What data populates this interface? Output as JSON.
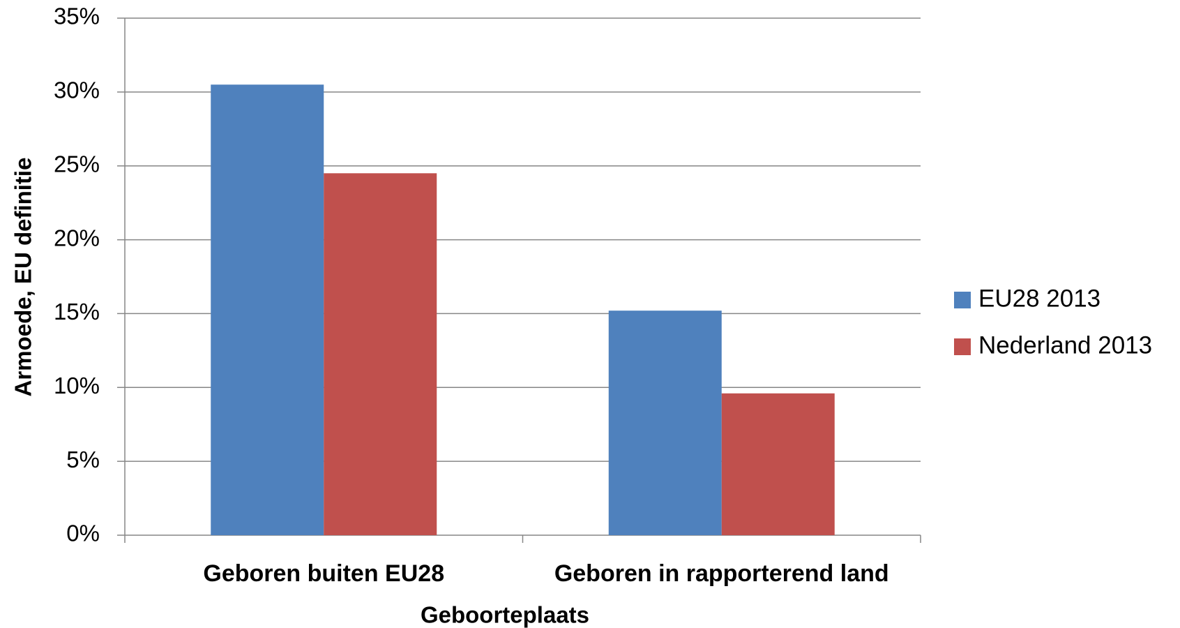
{
  "chart_data": {
    "type": "bar",
    "x_label": "Geboorteplaats",
    "y_label": "Armoede, EU definitie",
    "categories": [
      "Geboren buiten EU28",
      "Geboren in rapporterend land"
    ],
    "series": [
      {
        "name": "EU28 2013",
        "color": "#4f81bd",
        "values": [
          30.5,
          15.2
        ]
      },
      {
        "name": "Nederland 2013",
        "color": "#c0504d",
        "values": [
          24.5,
          9.6
        ]
      }
    ],
    "ylim": [
      0,
      35
    ],
    "yticks": [
      {
        "value": 0,
        "label": "0%"
      },
      {
        "value": 5,
        "label": "5%"
      },
      {
        "value": 10,
        "label": "10%"
      },
      {
        "value": 15,
        "label": "15%"
      },
      {
        "value": 20,
        "label": "20%"
      },
      {
        "value": 25,
        "label": "25%"
      },
      {
        "value": 30,
        "label": "30%"
      },
      {
        "value": 35,
        "label": "35%"
      }
    ],
    "grid": true,
    "legend": "right"
  }
}
